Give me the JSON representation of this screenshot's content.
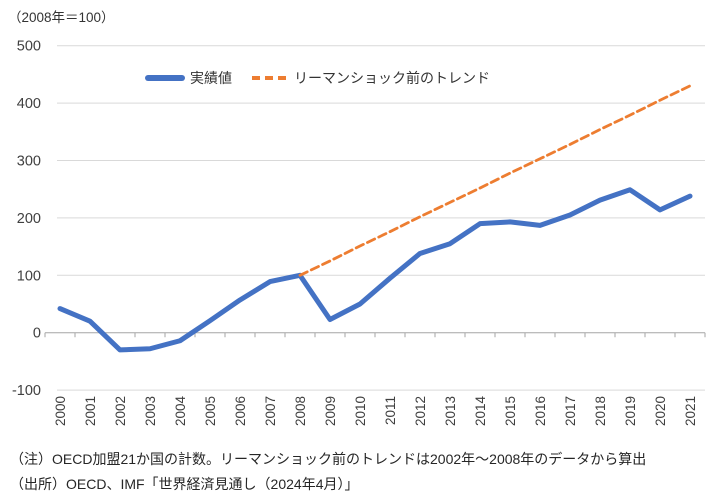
{
  "unit_label": "（2008年＝100）",
  "legend": {
    "actual_label": "実績値",
    "trend_label": "リーマンショック前のトレンド"
  },
  "notes": {
    "note": "（注）OECD加盟21か国の計数。リーマンショック前のトレンドは2002年～2008年のデータから算出",
    "source": "（出所）OECD、IMF「世界経済見通し（2024年4月）」"
  },
  "colors": {
    "actual": "#4472C4",
    "trend": "#ED7D31",
    "gridline": "#D9D9D9",
    "axis": "#A6A6A6",
    "tick_label": "#404040"
  },
  "chart_data": {
    "type": "line",
    "title": "",
    "unit_note": "（2008年＝100）",
    "categories": [
      2000,
      2001,
      2002,
      2003,
      2004,
      2005,
      2006,
      2007,
      2008,
      2009,
      2010,
      2011,
      2012,
      2013,
      2014,
      2015,
      2016,
      2017,
      2018,
      2019,
      2020,
      2021
    ],
    "series": [
      {
        "name": "実績値",
        "style": "solid",
        "color": "#4472C4",
        "values": [
          42,
          20,
          -30,
          -28,
          -14,
          21,
          57,
          89,
          100,
          23,
          50,
          95,
          138,
          155,
          190,
          193,
          187,
          205,
          231,
          249,
          214,
          238
        ]
      },
      {
        "name": "リーマンショック前のトレンド",
        "style": "dashed",
        "color": "#ED7D31",
        "values": [
          null,
          null,
          null,
          null,
          null,
          null,
          null,
          null,
          100,
          125,
          151,
          176,
          202,
          227,
          252,
          278,
          303,
          328,
          354,
          379,
          405,
          430
        ]
      }
    ],
    "y_ticks": [
      -100,
      0,
      100,
      200,
      300,
      400,
      500
    ],
    "ylim": [
      -100,
      500
    ],
    "xlabel": "",
    "ylabel": "",
    "grid": "horizontal",
    "legend_position": "top"
  }
}
